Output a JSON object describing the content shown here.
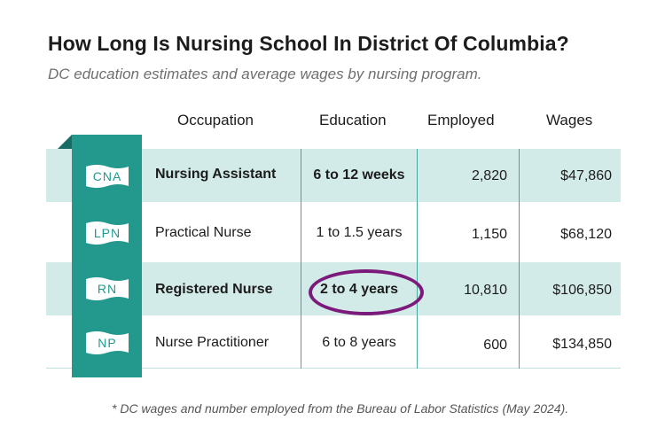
{
  "title": "How Long Is Nursing School In District Of Columbia?",
  "subtitle": "DC education estimates and average wages by nursing program.",
  "columns": {
    "occupation": "Occupation",
    "education": "Education",
    "employed": "Employed",
    "wages": "Wages"
  },
  "rows": [
    {
      "badge": "CNA",
      "occupation": "Nursing Assistant",
      "education": "6 to 12 weeks",
      "employed": "2,820",
      "wages": "$47,860",
      "bold": true
    },
    {
      "badge": "LPN",
      "occupation": "Practical Nurse",
      "education": "1 to 1.5 years",
      "employed": "1,150",
      "wages": "$68,120",
      "bold": false
    },
    {
      "badge": "RN",
      "occupation": "Registered Nurse",
      "education": "2 to 4 years",
      "employed": "10,810",
      "wages": "$106,850",
      "bold": true,
      "highlighted": true
    },
    {
      "badge": "NP",
      "occupation": "Nurse Practitioner",
      "education": "6 to 8 years",
      "employed": "600",
      "wages": "$134,850",
      "bold": false
    }
  ],
  "footnote": "* DC wages and number employed from the Bureau of Labor Statistics (May 2024).",
  "colors": {
    "teal": "#23988c",
    "row_shade": "#d3ebe8",
    "highlight_circle": "#7b1a7b"
  }
}
